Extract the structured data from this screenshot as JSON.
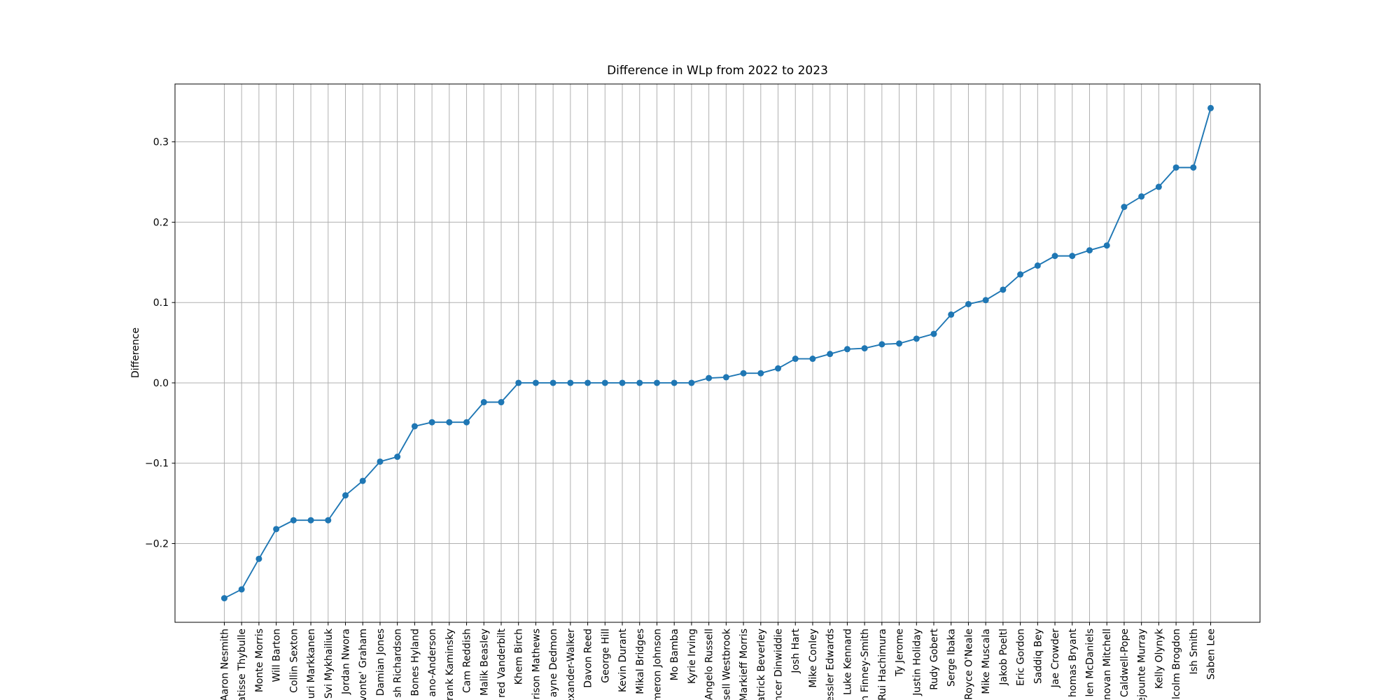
{
  "chart_data": {
    "type": "line",
    "title": "Difference in WLp from 2022 to 2023",
    "ylabel": "Difference",
    "categories": [
      "Aaron Nesmith",
      "atisse Thybulle",
      "Monte Morris",
      "Will Barton",
      "Collin Sexton",
      "uri Markkanen",
      "Svi Mykhailiuk",
      "Jordan Nwora",
      "vonte' Graham",
      "Damian Jones",
      "sh Richardson",
      "Bones Hyland",
      "ano-Anderson",
      "rank Kaminsky",
      "Cam Reddish",
      "Malik Beasley",
      "red Vanderbilt",
      "Khem Birch",
      "rison Mathews",
      "ayne Dedmon",
      "exander-Walker",
      "Davon Reed",
      "George Hill",
      "Kevin Durant",
      "Mikal Bridges",
      "meron Johnson",
      "Mo Bamba",
      "Kyrie Irving",
      "Angelo Russell",
      "sell Westbrook",
      "Markieff Morris",
      "atrick Beverley",
      "ncer Dinwiddie",
      "Josh Hart",
      "Mike Conley",
      "essler Edwards",
      "Luke Kennard",
      "n Finney-Smith",
      "Rui Hachimura",
      "Ty Jerome",
      "Justin Holiday",
      "Rudy Gobert",
      "Serge Ibaka",
      "Royce O'Neale",
      "Mike Muscala",
      "Jakob Poeltl",
      "Eric Gordon",
      "Saddiq Bey",
      "Jae Crowder",
      "homas Bryant",
      "len McDaniels",
      "novan Mitchell",
      "Caldwell-Pope",
      "ejounte Murray",
      "Kelly Olynyk",
      "lcolm Brogdon",
      "Ish Smith",
      "Saben Lee"
    ],
    "series": [
      {
        "color": "#1f77b4",
        "values": [
          -0.268,
          -0.257,
          -0.219,
          -0.182,
          -0.171,
          -0.171,
          -0.171,
          -0.14,
          -0.122,
          -0.098,
          -0.092,
          -0.054,
          -0.049,
          -0.049,
          -0.049,
          -0.024,
          -0.024,
          0,
          0,
          0,
          0,
          0,
          0,
          0,
          0,
          0,
          0,
          0,
          0.006,
          0.007,
          0.012,
          0.012,
          0.018,
          0.03,
          0.03,
          0.036,
          0.042,
          0.043,
          0.048,
          0.049,
          0.055,
          0.061,
          0.085,
          0.098,
          0.103,
          0.116,
          0.135,
          0.146,
          0.158,
          0.158,
          0.165,
          0.171,
          0.219,
          0.232,
          0.244,
          0.268,
          0.268,
          0.342
        ]
      }
    ],
    "ylim": [
      -0.298,
      0.372
    ],
    "yticks": [
      {
        "value": -0.2,
        "label": "−0.2"
      },
      {
        "value": -0.1,
        "label": "−0.1"
      },
      {
        "value": 0,
        "label": "0.0"
      },
      0.1,
      0.2,
      0.3
    ],
    "grid": true
  }
}
